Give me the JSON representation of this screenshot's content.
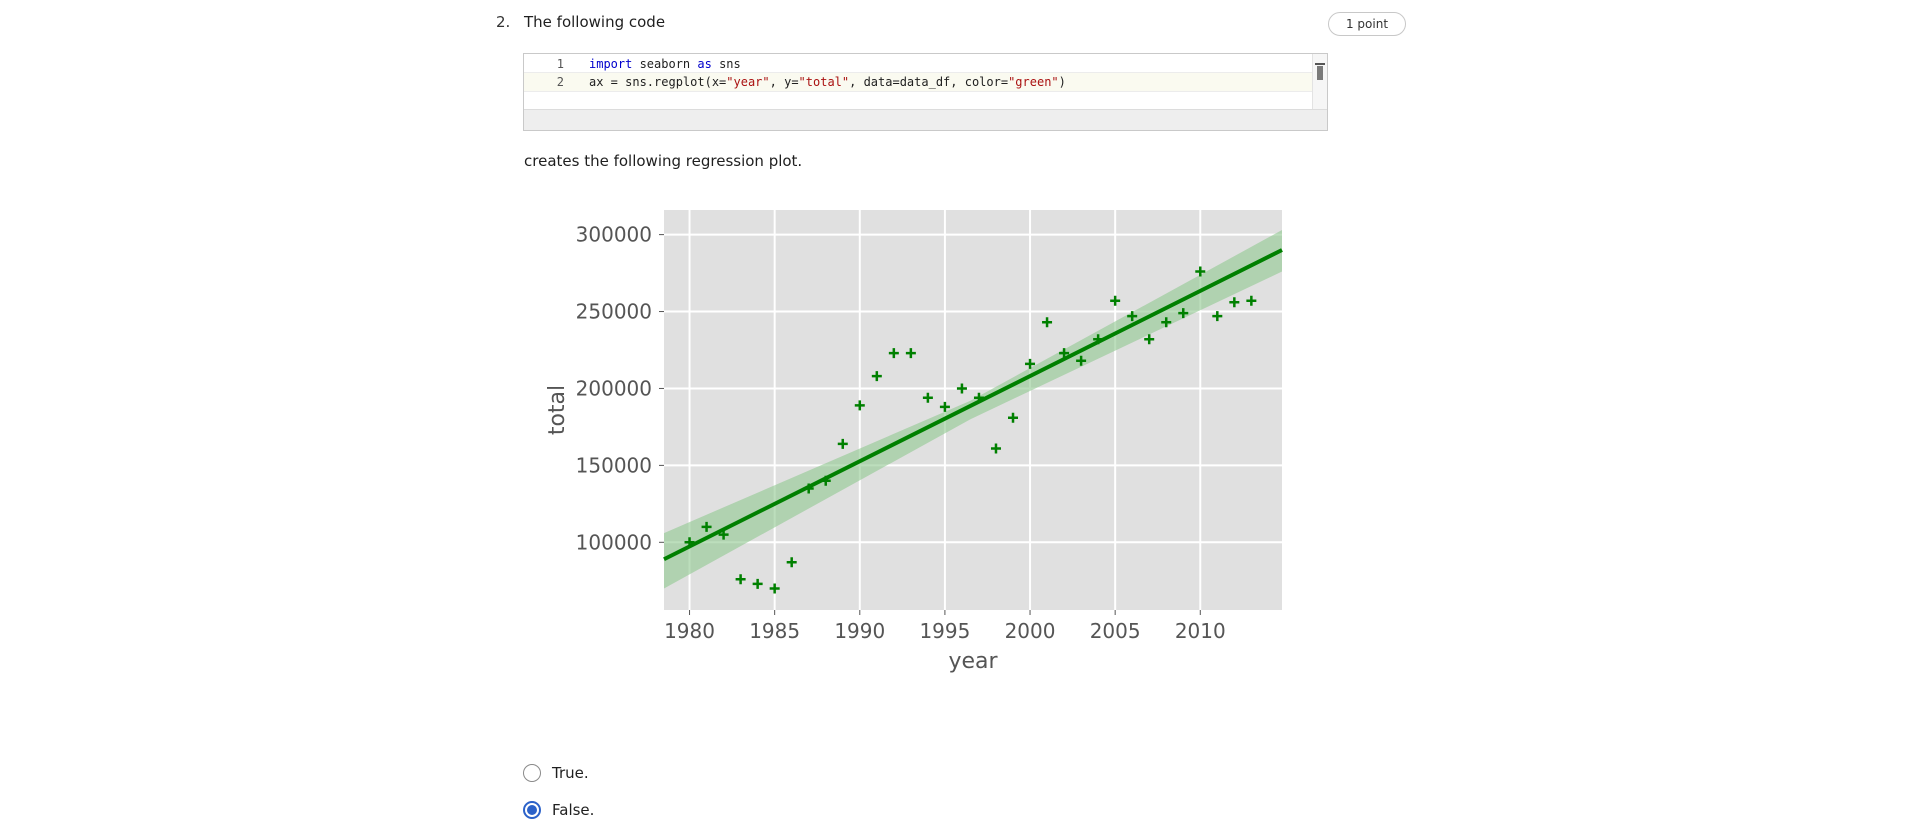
{
  "question": {
    "number": "2.",
    "prompt": "The following code",
    "points": "1 point",
    "caption": "creates the following regression plot."
  },
  "code": {
    "lines": [
      {
        "n": "1",
        "text": "import seaborn as sns"
      },
      {
        "n": "2",
        "text": "ax = sns.regplot(x=\"year\", y=\"total\", data=data_df, color=\"green\")"
      }
    ]
  },
  "chart_data": {
    "type": "scatter",
    "title": "",
    "xlabel": "year",
    "ylabel": "total",
    "xlim": [
      1978.5,
      2014.8
    ],
    "ylim": [
      56000,
      316000
    ],
    "x_ticks": [
      1980,
      1985,
      1990,
      1995,
      2000,
      2005,
      2010
    ],
    "y_ticks": [
      100000,
      150000,
      200000,
      250000,
      300000
    ],
    "x_tick_labels": [
      "1980",
      "1985",
      "1990",
      "1995",
      "2000",
      "2005",
      "2010"
    ],
    "y_tick_labels": [
      "100000",
      "150000",
      "200000",
      "250000",
      "300000"
    ],
    "grid": true,
    "marker": "+",
    "color": "#008000",
    "band_color": "#90c890",
    "background": "#e0e0e0",
    "points": [
      {
        "x": 1980,
        "y": 100000
      },
      {
        "x": 1981,
        "y": 110000
      },
      {
        "x": 1982,
        "y": 105000
      },
      {
        "x": 1983,
        "y": 76000
      },
      {
        "x": 1984,
        "y": 73000
      },
      {
        "x": 1985,
        "y": 70000
      },
      {
        "x": 1986,
        "y": 87000
      },
      {
        "x": 1987,
        "y": 135000
      },
      {
        "x": 1988,
        "y": 140000
      },
      {
        "x": 1989,
        "y": 164000
      },
      {
        "x": 1990,
        "y": 189000
      },
      {
        "x": 1991,
        "y": 208000
      },
      {
        "x": 1992,
        "y": 223000
      },
      {
        "x": 1993,
        "y": 223000
      },
      {
        "x": 1994,
        "y": 194000
      },
      {
        "x": 1995,
        "y": 188000
      },
      {
        "x": 1996,
        "y": 200000
      },
      {
        "x": 1997,
        "y": 194000
      },
      {
        "x": 1998,
        "y": 161000
      },
      {
        "x": 1999,
        "y": 181000
      },
      {
        "x": 2000,
        "y": 216000
      },
      {
        "x": 2001,
        "y": 243000
      },
      {
        "x": 2002,
        "y": 223000
      },
      {
        "x": 2003,
        "y": 218000
      },
      {
        "x": 2004,
        "y": 232000
      },
      {
        "x": 2005,
        "y": 257000
      },
      {
        "x": 2006,
        "y": 247000
      },
      {
        "x": 2007,
        "y": 232000
      },
      {
        "x": 2008,
        "y": 243000
      },
      {
        "x": 2009,
        "y": 249000
      },
      {
        "x": 2010,
        "y": 276000
      },
      {
        "x": 2011,
        "y": 247000
      },
      {
        "x": 2012,
        "y": 256000
      },
      {
        "x": 2013,
        "y": 257000
      }
    ],
    "regression_line": {
      "x": [
        1978.5,
        2014.8
      ],
      "y": [
        89000,
        290000
      ]
    },
    "confidence_band": {
      "x": [
        1978.5,
        1996.5,
        2014.8
      ],
      "upper": [
        106000,
        192000,
        303000
      ],
      "lower": [
        70000,
        180000,
        276000
      ]
    }
  },
  "options": [
    {
      "label": "True.",
      "checked": false
    },
    {
      "label": "False.",
      "checked": true
    }
  ]
}
